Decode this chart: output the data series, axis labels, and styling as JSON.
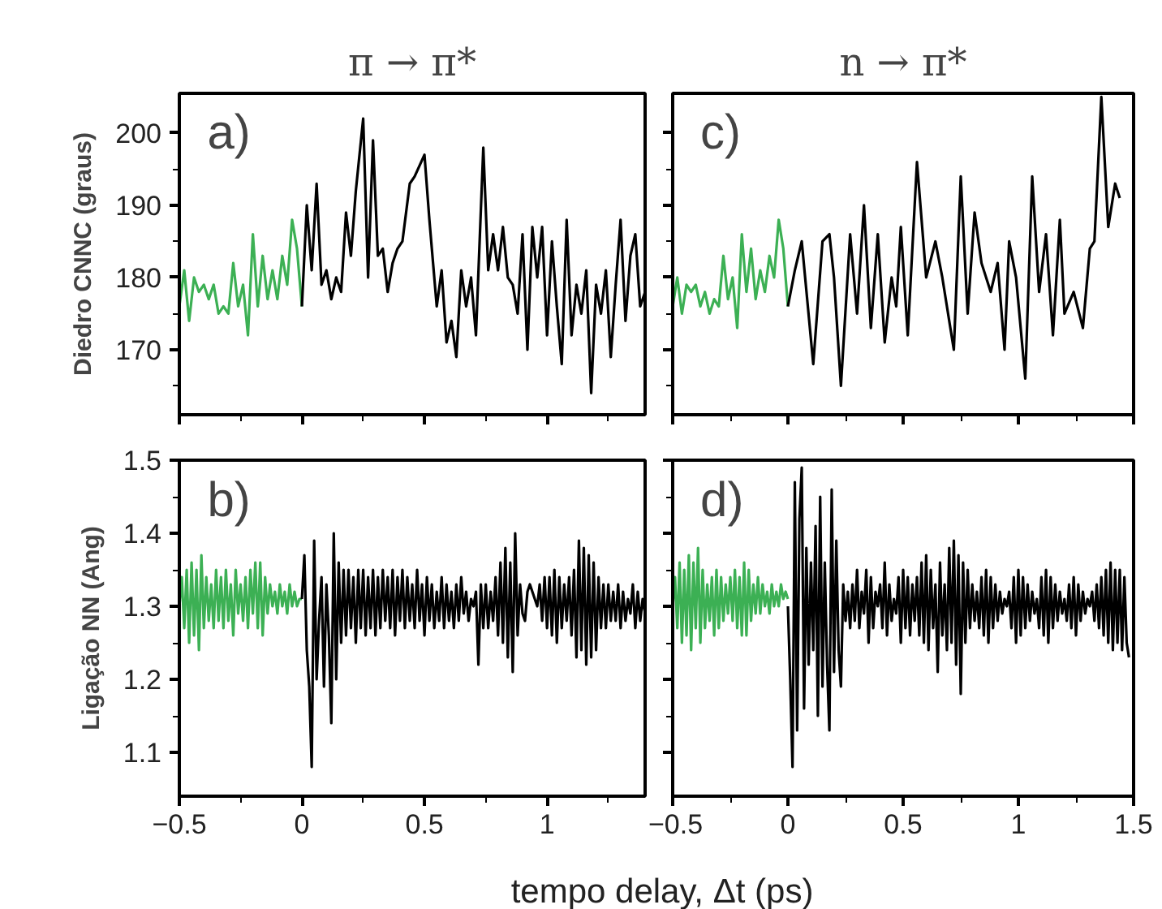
{
  "chart_data": [
    {
      "type": "line",
      "title": "π → π*",
      "ylabel": "Diedro CNNC (graus)",
      "annotations": [
        "a)"
      ],
      "xlim": [
        -0.5,
        1.4
      ],
      "ylim": [
        161,
        205.5
      ],
      "tick_labels": "y",
      "grid": false,
      "xticks": [
        -0.5,
        {
          "value": -0.25,
          "label": null
        },
        0,
        {
          "value": 0.25,
          "label": null
        },
        0.5,
        {
          "value": 0.75,
          "label": null
        },
        1,
        {
          "value": 1.25,
          "label": null
        }
      ],
      "yticks": [
        {
          "value": 165,
          "label": null
        },
        170,
        {
          "value": 175,
          "label": null
        },
        180,
        {
          "value": 185,
          "label": null
        },
        190,
        {
          "value": 195,
          "label": null
        },
        200
      ],
      "series": [
        {
          "color": "#3cb054",
          "x": [
            -0.5,
            -0.48,
            -0.46,
            -0.44,
            -0.42,
            -0.4,
            -0.38,
            -0.36,
            -0.34,
            -0.32,
            -0.3,
            -0.28,
            -0.26,
            -0.24,
            -0.22,
            -0.2,
            -0.18,
            -0.16,
            -0.14,
            -0.12,
            -0.1,
            -0.08,
            -0.06,
            -0.04,
            -0.02,
            0
          ],
          "values": [
            176,
            181,
            174,
            180,
            178,
            179,
            177,
            179,
            175,
            176,
            175,
            182,
            176,
            179,
            172,
            186,
            176,
            183,
            177,
            181,
            177,
            183,
            179,
            188,
            184,
            176
          ]
        },
        {
          "color": "#000000",
          "x": [
            0,
            0.02,
            0.04,
            0.06,
            0.08,
            0.1,
            0.12,
            0.14,
            0.16,
            0.18,
            0.2,
            0.22,
            0.25,
            0.27,
            0.29,
            0.31,
            0.33,
            0.35,
            0.37,
            0.39,
            0.41,
            0.44,
            0.46,
            0.5,
            0.52,
            0.55,
            0.57,
            0.59,
            0.61,
            0.63,
            0.65,
            0.67,
            0.69,
            0.71,
            0.74,
            0.76,
            0.78,
            0.8,
            0.82,
            0.84,
            0.86,
            0.88,
            0.9,
            0.92,
            0.94,
            0.96,
            0.98,
            1.0,
            1.02,
            1.04,
            1.06,
            1.08,
            1.1,
            1.12,
            1.14,
            1.16,
            1.18,
            1.2,
            1.22,
            1.24,
            1.26,
            1.28,
            1.3,
            1.32,
            1.34,
            1.36,
            1.38,
            1.4
          ],
          "values": [
            176,
            190,
            181,
            193,
            179,
            181,
            177,
            180,
            178,
            189,
            183,
            192,
            202,
            180,
            199,
            183,
            184,
            178,
            182,
            184,
            185,
            193,
            194,
            197,
            188,
            176,
            181,
            171,
            174,
            169,
            181,
            176,
            180,
            172,
            198,
            181,
            186,
            181,
            187,
            180,
            179,
            175,
            186,
            170,
            187,
            180,
            187,
            172,
            185,
            176,
            168,
            188,
            172,
            179,
            175,
            181,
            164,
            179,
            175,
            181,
            169,
            179,
            188,
            174,
            183,
            186,
            176,
            178
          ]
        }
      ]
    },
    {
      "type": "line",
      "ylabel": "Ligação NN (Ang)",
      "xlabel": "tempo delay, Δt (ps)",
      "annotations": [
        "b)"
      ],
      "xlim": [
        -0.5,
        1.4
      ],
      "ylim": [
        1.04,
        1.5
      ],
      "grid": false,
      "xticks": [
        -0.5,
        {
          "value": -0.25,
          "label": null
        },
        0,
        {
          "value": 0.25,
          "label": null
        },
        0.5,
        {
          "value": 0.75,
          "label": null
        },
        1,
        {
          "value": 1.25,
          "label": null
        }
      ],
      "yticks": [
        1.1,
        {
          "value": 1.15,
          "label": null
        },
        1.2,
        {
          "value": 1.25,
          "label": null
        },
        1.3,
        {
          "value": 1.35,
          "label": null
        },
        1.4,
        {
          "value": 1.45,
          "label": null
        },
        1.5
      ],
      "series": [
        {
          "color": "#3cb054",
          "x": [
            -0.5,
            -0.49,
            -0.48,
            -0.47,
            -0.46,
            -0.45,
            -0.44,
            -0.43,
            -0.42,
            -0.41,
            -0.4,
            -0.39,
            -0.38,
            -0.37,
            -0.36,
            -0.35,
            -0.34,
            -0.33,
            -0.32,
            -0.31,
            -0.3,
            -0.29,
            -0.28,
            -0.27,
            -0.26,
            -0.25,
            -0.24,
            -0.23,
            -0.22,
            -0.21,
            -0.2,
            -0.19,
            -0.18,
            -0.17,
            -0.16,
            -0.15,
            -0.14,
            -0.13,
            -0.12,
            -0.11,
            -0.1,
            -0.09,
            -0.08,
            -0.07,
            -0.06,
            -0.05,
            -0.04,
            -0.03,
            -0.02,
            -0.01,
            0
          ],
          "values": [
            1.3,
            1.34,
            1.27,
            1.35,
            1.25,
            1.36,
            1.26,
            1.35,
            1.24,
            1.37,
            1.27,
            1.34,
            1.28,
            1.33,
            1.27,
            1.35,
            1.28,
            1.34,
            1.27,
            1.35,
            1.28,
            1.33,
            1.26,
            1.35,
            1.29,
            1.33,
            1.28,
            1.34,
            1.27,
            1.35,
            1.29,
            1.36,
            1.27,
            1.36,
            1.26,
            1.34,
            1.29,
            1.33,
            1.3,
            1.32,
            1.29,
            1.33,
            1.3,
            1.32,
            1.29,
            1.33,
            1.3,
            1.32,
            1.3,
            1.31,
            1.31
          ]
        },
        {
          "color": "#000000",
          "x": [
            0,
            0.01,
            0.02,
            0.03,
            0.04,
            0.05,
            0.06,
            0.07,
            0.08,
            0.09,
            0.1,
            0.11,
            0.12,
            0.13,
            0.14,
            0.15,
            0.16,
            0.17,
            0.18,
            0.19,
            0.2,
            0.21,
            0.22,
            0.23,
            0.24,
            0.25,
            0.26,
            0.27,
            0.28,
            0.29,
            0.3,
            0.31,
            0.32,
            0.33,
            0.34,
            0.35,
            0.36,
            0.37,
            0.38,
            0.39,
            0.4,
            0.41,
            0.42,
            0.43,
            0.44,
            0.45,
            0.46,
            0.47,
            0.48,
            0.49,
            0.5,
            0.51,
            0.52,
            0.53,
            0.54,
            0.55,
            0.56,
            0.57,
            0.58,
            0.59,
            0.6,
            0.61,
            0.62,
            0.63,
            0.64,
            0.65,
            0.66,
            0.67,
            0.68,
            0.69,
            0.7,
            0.71,
            0.72,
            0.73,
            0.74,
            0.75,
            0.76,
            0.77,
            0.78,
            0.79,
            0.8,
            0.81,
            0.82,
            0.83,
            0.84,
            0.85,
            0.86,
            0.87,
            0.88,
            0.89,
            0.9,
            0.91,
            0.92,
            0.93,
            0.94,
            0.95,
            0.96,
            0.97,
            0.98,
            0.99,
            1.0,
            1.01,
            1.02,
            1.03,
            1.04,
            1.05,
            1.06,
            1.07,
            1.08,
            1.09,
            1.1,
            1.11,
            1.12,
            1.13,
            1.14,
            1.15,
            1.16,
            1.17,
            1.18,
            1.19,
            1.2,
            1.21,
            1.22,
            1.23,
            1.24,
            1.25,
            1.26,
            1.27,
            1.28,
            1.29,
            1.3,
            1.31,
            1.32,
            1.33,
            1.34,
            1.35,
            1.36,
            1.37,
            1.38,
            1.39,
            1.4
          ],
          "values": [
            1.31,
            1.37,
            1.24,
            1.19,
            1.08,
            1.39,
            1.2,
            1.28,
            1.34,
            1.19,
            1.33,
            1.26,
            1.14,
            1.4,
            1.2,
            1.36,
            1.25,
            1.35,
            1.26,
            1.35,
            1.27,
            1.34,
            1.25,
            1.35,
            1.27,
            1.35,
            1.26,
            1.34,
            1.27,
            1.35,
            1.26,
            1.34,
            1.27,
            1.35,
            1.28,
            1.34,
            1.27,
            1.35,
            1.26,
            1.34,
            1.28,
            1.35,
            1.27,
            1.34,
            1.28,
            1.33,
            1.27,
            1.35,
            1.28,
            1.33,
            1.26,
            1.34,
            1.28,
            1.33,
            1.27,
            1.32,
            1.28,
            1.34,
            1.27,
            1.33,
            1.28,
            1.32,
            1.27,
            1.33,
            1.28,
            1.34,
            1.29,
            1.32,
            1.28,
            1.31,
            1.3,
            1.32,
            1.22,
            1.33,
            1.27,
            1.33,
            1.27,
            1.32,
            1.28,
            1.34,
            1.26,
            1.36,
            1.25,
            1.38,
            1.23,
            1.36,
            1.21,
            1.4,
            1.26,
            1.33,
            1.29,
            1.28,
            1.32,
            1.33,
            1.32,
            1.31,
            1.3,
            1.33,
            1.28,
            1.34,
            1.27,
            1.34,
            1.26,
            1.35,
            1.25,
            1.34,
            1.27,
            1.33,
            1.28,
            1.34,
            1.26,
            1.35,
            1.23,
            1.39,
            1.24,
            1.38,
            1.22,
            1.37,
            1.23,
            1.36,
            1.24,
            1.34,
            1.27,
            1.33,
            1.27,
            1.33,
            1.28,
            1.32,
            1.28,
            1.33,
            1.27,
            1.32,
            1.28,
            1.31,
            1.29,
            1.33,
            1.27,
            1.32,
            1.28,
            1.31,
            1.29
          ]
        }
      ]
    },
    {
      "type": "line",
      "title": "n → π*",
      "annotations": [
        "c)"
      ],
      "xlim": [
        -0.5,
        1.5
      ],
      "ylim": [
        161,
        205.5
      ],
      "tick_labels": false,
      "grid": false,
      "xticks": [
        -0.5,
        {
          "value": -0.25,
          "label": null
        },
        0,
        {
          "value": 0.25,
          "label": null
        },
        0.5,
        {
          "value": 0.75,
          "label": null
        },
        1,
        {
          "value": 1.25,
          "label": null
        },
        1.5
      ],
      "yticks": [
        {
          "value": 165,
          "label": null
        },
        170,
        {
          "value": 175,
          "label": null
        },
        180,
        {
          "value": 185,
          "label": null
        },
        190,
        {
          "value": 195,
          "label": null
        },
        200
      ],
      "series": [
        {
          "color": "#3cb054",
          "x": [
            -0.5,
            -0.48,
            -0.46,
            -0.44,
            -0.42,
            -0.4,
            -0.38,
            -0.36,
            -0.34,
            -0.32,
            -0.3,
            -0.28,
            -0.26,
            -0.24,
            -0.22,
            -0.2,
            -0.18,
            -0.16,
            -0.14,
            -0.12,
            -0.1,
            -0.08,
            -0.06,
            -0.04,
            -0.02,
            0
          ],
          "values": [
            176,
            180,
            175,
            179,
            178,
            179,
            176,
            178,
            175,
            177,
            176,
            183,
            177,
            180,
            173,
            186,
            178,
            184,
            177,
            181,
            178,
            183,
            180,
            188,
            184,
            176
          ]
        },
        {
          "color": "#000000",
          "x": [
            0,
            0.03,
            0.06,
            0.11,
            0.15,
            0.18,
            0.2,
            0.23,
            0.27,
            0.3,
            0.33,
            0.36,
            0.39,
            0.42,
            0.45,
            0.47,
            0.49,
            0.52,
            0.56,
            0.6,
            0.64,
            0.67,
            0.72,
            0.75,
            0.78,
            0.81,
            0.84,
            0.88,
            0.91,
            0.94,
            0.96,
            0.99,
            1.03,
            1.06,
            1.09,
            1.12,
            1.15,
            1.18,
            1.2,
            1.24,
            1.28,
            1.31,
            1.33,
            1.36,
            1.39,
            1.42,
            1.44
          ],
          "values": [
            176,
            181,
            185,
            168,
            185,
            186,
            180,
            165,
            186,
            175,
            190,
            173,
            186,
            171,
            180,
            176,
            187,
            172,
            196,
            180,
            185,
            180,
            170,
            194,
            175,
            189,
            182,
            178,
            182,
            170,
            185,
            180,
            166,
            194,
            178,
            186,
            172,
            188,
            175,
            178,
            173,
            184,
            185,
            205,
            187,
            193,
            191
          ]
        }
      ]
    },
    {
      "type": "line",
      "annotations": [
        "d)"
      ],
      "xlim": [
        -0.5,
        1.5
      ],
      "ylim": [
        1.04,
        1.5
      ],
      "tick_labels": "x",
      "grid": false,
      "xticks": [
        -0.5,
        {
          "value": -0.25,
          "label": null
        },
        0,
        {
          "value": 0.25,
          "label": null
        },
        0.5,
        {
          "value": 0.75,
          "label": null
        },
        1,
        {
          "value": 1.25,
          "label": null
        },
        1.5
      ],
      "yticks": [
        1.1,
        {
          "value": 1.15,
          "label": null
        },
        1.2,
        {
          "value": 1.25,
          "label": null
        },
        1.3,
        {
          "value": 1.35,
          "label": null
        },
        1.4,
        {
          "value": 1.45,
          "label": null
        },
        1.5
      ],
      "series": [
        {
          "color": "#3cb054",
          "x": [
            -0.5,
            -0.49,
            -0.48,
            -0.47,
            -0.46,
            -0.45,
            -0.44,
            -0.43,
            -0.42,
            -0.41,
            -0.4,
            -0.39,
            -0.38,
            -0.37,
            -0.36,
            -0.35,
            -0.34,
            -0.33,
            -0.32,
            -0.31,
            -0.3,
            -0.29,
            -0.28,
            -0.27,
            -0.26,
            -0.25,
            -0.24,
            -0.23,
            -0.22,
            -0.21,
            -0.2,
            -0.19,
            -0.18,
            -0.17,
            -0.16,
            -0.15,
            -0.14,
            -0.13,
            -0.12,
            -0.11,
            -0.1,
            -0.09,
            -0.08,
            -0.07,
            -0.06,
            -0.05,
            -0.04,
            -0.03,
            -0.02,
            -0.01,
            0
          ],
          "values": [
            1.3,
            1.34,
            1.27,
            1.36,
            1.25,
            1.35,
            1.26,
            1.37,
            1.24,
            1.36,
            1.27,
            1.38,
            1.25,
            1.35,
            1.27,
            1.33,
            1.28,
            1.34,
            1.26,
            1.35,
            1.27,
            1.34,
            1.28,
            1.33,
            1.29,
            1.34,
            1.28,
            1.35,
            1.27,
            1.34,
            1.26,
            1.36,
            1.26,
            1.35,
            1.28,
            1.33,
            1.29,
            1.34,
            1.29,
            1.33,
            1.3,
            1.32,
            1.29,
            1.33,
            1.3,
            1.32,
            1.3,
            1.33,
            1.31,
            1.32,
            1.31
          ]
        },
        {
          "color": "#000000",
          "x": [
            0,
            0.01,
            0.02,
            0.03,
            0.04,
            0.05,
            0.06,
            0.07,
            0.08,
            0.09,
            0.1,
            0.11,
            0.12,
            0.13,
            0.14,
            0.15,
            0.16,
            0.17,
            0.18,
            0.19,
            0.2,
            0.21,
            0.22,
            0.23,
            0.24,
            0.25,
            0.26,
            0.27,
            0.28,
            0.29,
            0.3,
            0.31,
            0.32,
            0.33,
            0.34,
            0.35,
            0.36,
            0.37,
            0.38,
            0.39,
            0.4,
            0.41,
            0.42,
            0.43,
            0.44,
            0.45,
            0.46,
            0.47,
            0.48,
            0.49,
            0.5,
            0.51,
            0.52,
            0.53,
            0.54,
            0.55,
            0.56,
            0.57,
            0.58,
            0.59,
            0.6,
            0.61,
            0.62,
            0.63,
            0.64,
            0.65,
            0.66,
            0.67,
            0.68,
            0.69,
            0.7,
            0.71,
            0.72,
            0.73,
            0.74,
            0.75,
            0.76,
            0.77,
            0.78,
            0.79,
            0.8,
            0.81,
            0.82,
            0.83,
            0.84,
            0.85,
            0.86,
            0.87,
            0.88,
            0.89,
            0.9,
            0.91,
            0.92,
            0.93,
            0.94,
            0.95,
            0.96,
            0.97,
            0.98,
            0.99,
            1.0,
            1.01,
            1.02,
            1.03,
            1.04,
            1.05,
            1.06,
            1.07,
            1.08,
            1.09,
            1.1,
            1.11,
            1.12,
            1.13,
            1.14,
            1.15,
            1.16,
            1.17,
            1.18,
            1.19,
            1.2,
            1.21,
            1.22,
            1.23,
            1.24,
            1.25,
            1.26,
            1.27,
            1.28,
            1.29,
            1.3,
            1.31,
            1.32,
            1.33,
            1.34,
            1.35,
            1.36,
            1.37,
            1.38,
            1.39,
            1.4,
            1.41,
            1.42,
            1.43,
            1.44,
            1.45,
            1.46,
            1.47,
            1.48
          ],
          "values": [
            1.3,
            1.2,
            1.08,
            1.47,
            1.13,
            1.42,
            1.49,
            1.16,
            1.38,
            1.22,
            1.36,
            1.24,
            1.41,
            1.15,
            1.45,
            1.19,
            1.36,
            1.22,
            1.13,
            1.46,
            1.21,
            1.39,
            1.24,
            1.19,
            1.33,
            1.28,
            1.32,
            1.27,
            1.33,
            1.28,
            1.35,
            1.27,
            1.32,
            1.29,
            1.35,
            1.25,
            1.34,
            1.27,
            1.32,
            1.3,
            1.33,
            1.27,
            1.36,
            1.26,
            1.33,
            1.28,
            1.31,
            1.29,
            1.34,
            1.25,
            1.35,
            1.27,
            1.34,
            1.26,
            1.33,
            1.28,
            1.34,
            1.26,
            1.36,
            1.25,
            1.37,
            1.24,
            1.35,
            1.27,
            1.33,
            1.21,
            1.36,
            1.26,
            1.33,
            1.24,
            1.38,
            1.25,
            1.39,
            1.22,
            1.37,
            1.18,
            1.36,
            1.25,
            1.35,
            1.27,
            1.33,
            1.28,
            1.32,
            1.27,
            1.34,
            1.26,
            1.35,
            1.25,
            1.34,
            1.27,
            1.33,
            1.28,
            1.32,
            1.29,
            1.31,
            1.3,
            1.32,
            1.27,
            1.34,
            1.25,
            1.35,
            1.26,
            1.34,
            1.27,
            1.33,
            1.28,
            1.32,
            1.29,
            1.31,
            1.27,
            1.34,
            1.26,
            1.35,
            1.25,
            1.34,
            1.27,
            1.33,
            1.28,
            1.32,
            1.29,
            1.31,
            1.28,
            1.33,
            1.27,
            1.34,
            1.26,
            1.33,
            1.28,
            1.32,
            1.29,
            1.31,
            1.3,
            1.32,
            1.28,
            1.33,
            1.27,
            1.34,
            1.26,
            1.35,
            1.25,
            1.36,
            1.24,
            1.35,
            1.25,
            1.35,
            1.24,
            1.34,
            1.25,
            1.23
          ]
        }
      ]
    }
  ]
}
